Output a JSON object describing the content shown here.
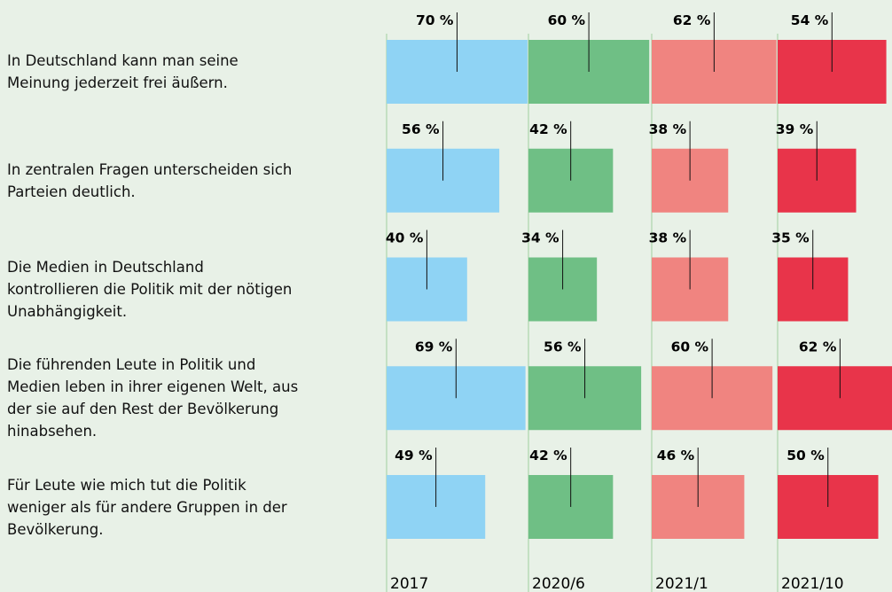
{
  "chart_data": {
    "type": "bar",
    "categories": [
      "In Deutschland kann man seine Meinung jederzeit frei äußern.",
      "In zentralen Fragen unterscheiden sich Parteien deutlich.",
      "Die Medien in Deutschland kontrollieren die Politik mit der nötigen Unabhängigkeit.",
      "Die führenden Leute in Politik und Medien leben in ihrer eigenen Welt, aus der sie auf den Rest der Bevölkerung hinabsehen.",
      "Für Leute wie mich tut die Politik weniger als für andere Gruppen in der Bevölkerung."
    ],
    "series": [
      {
        "name": "2017",
        "color": "#8fd3f4",
        "values": [
          70,
          56,
          40,
          69,
          49
        ],
        "value_labels": [
          "70 %",
          "56 %",
          "40 %",
          "69 %",
          "49 %"
        ]
      },
      {
        "name": "2020/6",
        "color": "#6fbf85",
        "values": [
          60,
          42,
          34,
          56,
          42
        ],
        "value_labels": [
          "60 %",
          "42 %",
          "34 %",
          "56 %",
          "42 %"
        ]
      },
      {
        "name": "2021/1",
        "color": "#f08480",
        "values": [
          62,
          38,
          38,
          60,
          46
        ],
        "value_labels": [
          "62 %",
          "38 %",
          "38 %",
          "60 %",
          "46 %"
        ]
      },
      {
        "name": "2021/10",
        "color": "#e8344a",
        "values": [
          54,
          39,
          35,
          62,
          50
        ],
        "value_labels": [
          "54 %",
          "39 %",
          "35 %",
          "62 %",
          "50 %"
        ]
      }
    ],
    "xlim": [
      0,
      100
    ]
  }
}
